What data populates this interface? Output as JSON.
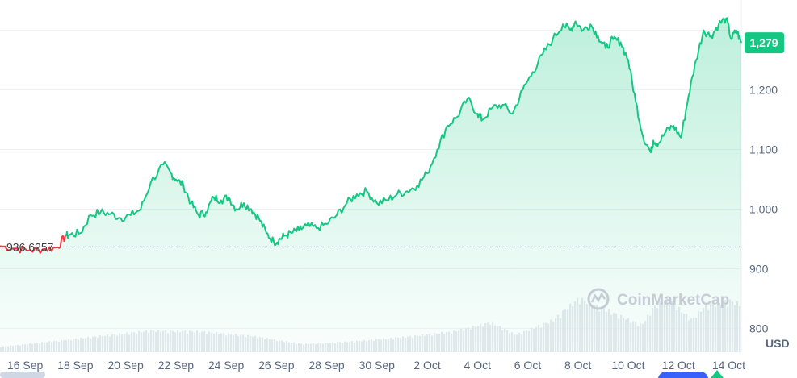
{
  "chart_data": {
    "type": "area",
    "y_unit": "USD",
    "y_ticks": [
      800,
      900,
      1000,
      1100,
      1200
    ],
    "y_tick_labels": [
      "800",
      "900",
      "1,000",
      "1,100",
      "1,200"
    ],
    "ylim": [
      760,
      1340
    ],
    "x_range": [
      15.0,
      44.5
    ],
    "x_ticks": [
      16,
      18,
      20,
      22,
      24,
      26,
      28,
      30,
      32,
      34,
      36,
      38,
      40,
      42,
      44
    ],
    "x_tick_labels": [
      "16 Sep",
      "18 Sep",
      "20 Sep",
      "22 Sep",
      "24 Sep",
      "26 Sep",
      "28 Sep",
      "30 Sep",
      "2 Oct",
      "4 Oct",
      "6 Oct",
      "8 Oct",
      "10 Oct",
      "12 Oct",
      "14 Oct"
    ],
    "reference_value": 936.6257,
    "reference_label": "936.6257",
    "current_value": 1279,
    "current_label": "1,279",
    "watermark": "CoinMarketCap",
    "line_color": "#16c784",
    "below_reference_color": "#ea3943",
    "grid": true,
    "series": [
      {
        "x": [
          15.0,
          15.6,
          16.2,
          16.8,
          17.3,
          17.6,
          17.8,
          18.2,
          18.6,
          19.0,
          19.4,
          19.8,
          20.2,
          20.6,
          21.0,
          21.5,
          21.8,
          22.0,
          22.3,
          22.6,
          22.9,
          23.2,
          23.5,
          23.8,
          24.1,
          24.4,
          24.7,
          25.0,
          25.3,
          25.6,
          25.9,
          26.1,
          26.3,
          26.6,
          26.9,
          27.2,
          27.6,
          28.0,
          28.4,
          28.8,
          29.2,
          29.6,
          30.0,
          30.4,
          30.8,
          31.2,
          31.6,
          32.0,
          32.4,
          32.8,
          33.2,
          33.6,
          34.0,
          34.2,
          34.6,
          35.0,
          35.4,
          35.8,
          36.2,
          36.6,
          37.0,
          37.4,
          37.7,
          37.9,
          38.2,
          38.5,
          38.8,
          39.1,
          39.4,
          39.7,
          40.0,
          40.3,
          40.6,
          40.9,
          41.0,
          41.2,
          41.5,
          41.8,
          42.1,
          42.4,
          42.7,
          43.0,
          43.3,
          43.6,
          43.9,
          44.1,
          44.3,
          44.5
        ],
        "y": [
          938,
          934,
          931,
          933,
          936,
          955,
          957,
          960,
          990,
          995,
          992,
          985,
          990,
          1000,
          1045,
          1075,
          1060,
          1050,
          1040,
          1010,
          990,
          995,
          1020,
          1015,
          1020,
          1000,
          1010,
          1000,
          985,
          960,
          945,
          948,
          955,
          960,
          965,
          972,
          968,
          975,
          990,
          1010,
          1025,
          1030,
          1010,
          1015,
          1025,
          1030,
          1040,
          1060,
          1100,
          1140,
          1155,
          1185,
          1160,
          1150,
          1170,
          1175,
          1160,
          1200,
          1230,
          1260,
          1285,
          1310,
          1300,
          1315,
          1300,
          1310,
          1290,
          1270,
          1285,
          1280,
          1250,
          1180,
          1120,
          1095,
          1115,
          1110,
          1130,
          1140,
          1120,
          1190,
          1250,
          1300,
          1290,
          1310,
          1320,
          1285,
          1300,
          1279
        ]
      }
    ],
    "volume": {
      "x": [
        15.0,
        17.0,
        19.0,
        21.0,
        23.0,
        25.0,
        27.0,
        29.0,
        31.0,
        33.0,
        34.5,
        35.5,
        37.0,
        38.0,
        38.5,
        39.5,
        40.5,
        41.0,
        41.5,
        42.0,
        42.5,
        43.0,
        43.5,
        44.0,
        44.5
      ],
      "v": [
        0.1,
        0.2,
        0.3,
        0.4,
        0.38,
        0.3,
        0.15,
        0.2,
        0.28,
        0.38,
        0.55,
        0.32,
        0.6,
        1.0,
        0.9,
        0.7,
        0.5,
        0.85,
        1.0,
        0.8,
        0.6,
        0.85,
        0.9,
        0.95,
        0.88
      ]
    }
  }
}
